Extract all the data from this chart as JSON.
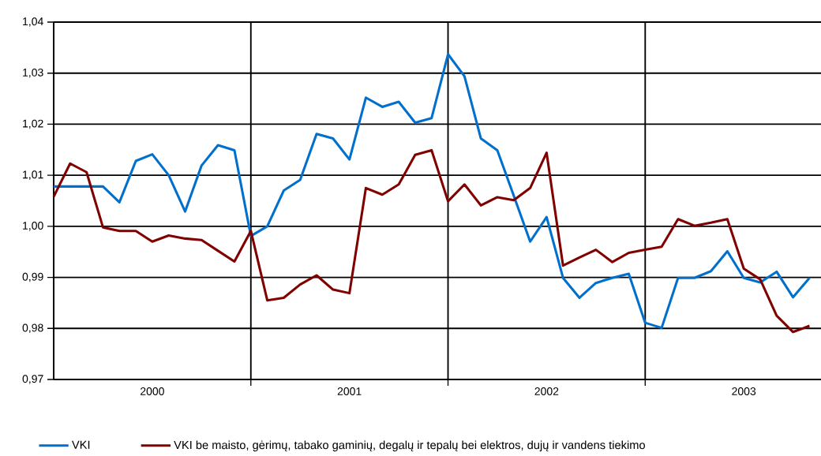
{
  "chart_data": {
    "type": "line",
    "x": [
      "2000-01",
      "2000-02",
      "2000-03",
      "2000-04",
      "2000-05",
      "2000-06",
      "2000-07",
      "2000-08",
      "2000-09",
      "2000-10",
      "2000-11",
      "2000-12",
      "2001-01",
      "2001-02",
      "2001-03",
      "2001-04",
      "2001-05",
      "2001-06",
      "2001-07",
      "2001-08",
      "2001-09",
      "2001-10",
      "2001-11",
      "2001-12",
      "2002-01",
      "2002-02",
      "2002-03",
      "2002-04",
      "2002-05",
      "2002-06",
      "2002-07",
      "2002-08",
      "2002-09",
      "2002-10",
      "2002-11",
      "2002-12",
      "2003-01",
      "2003-02",
      "2003-03",
      "2003-04",
      "2003-05",
      "2003-06",
      "2003-07",
      "2003-08",
      "2003-09",
      "2003-10",
      "2003-11"
    ],
    "series": [
      {
        "name": "VKI",
        "color": "#0070cc",
        "values": [
          1.0078,
          1.0078,
          1.0078,
          1.0078,
          1.0047,
          1.0128,
          1.0141,
          1.01,
          1.0029,
          1.0119,
          1.0159,
          1.0149,
          0.9981,
          1.0,
          1.007,
          1.0091,
          1.0181,
          1.0172,
          1.0131,
          1.0252,
          1.0234,
          1.0244,
          1.0203,
          1.0212,
          1.0337,
          1.0294,
          1.0172,
          1.0149,
          1.006,
          0.997,
          1.0018,
          0.9899,
          0.986,
          0.9889,
          0.9899,
          0.9907,
          0.9811,
          0.9801,
          0.9899,
          0.9899,
          0.9912,
          0.9951,
          0.9899,
          0.989,
          0.9911,
          0.9861,
          0.9899
        ]
      },
      {
        "name": "VKI be maisto, gėrimų, tabako gaminių, degalų ir tepalų bei elektros, dujų ir vandens tiekimo",
        "color": "#800000",
        "values": [
          1.0058,
          1.0123,
          1.0106,
          0.9998,
          0.9991,
          0.9991,
          0.997,
          0.9982,
          0.9976,
          0.9973,
          0.9952,
          0.9931,
          0.9991,
          0.9855,
          0.986,
          0.9886,
          0.9904,
          0.9876,
          0.9869,
          1.0075,
          1.0062,
          1.0082,
          1.014,
          1.0149,
          1.0049,
          1.0082,
          1.0041,
          1.0057,
          1.0051,
          1.0075,
          1.0144,
          0.9923,
          0.9939,
          0.9954,
          0.993,
          0.9948,
          0.9954,
          0.996,
          1.0014,
          1.0001,
          1.0007,
          1.0014,
          0.9917,
          0.9896,
          0.9825,
          0.9793,
          0.9805
        ]
      }
    ],
    "xlim": [
      "2000-01",
      "2003-11-22"
    ],
    "ylim": [
      0.97,
      1.04
    ],
    "xticks": [
      {
        "value": "2000-07",
        "label": "2000"
      },
      {
        "value": "2001-01",
        "label": null
      },
      {
        "value": "2001-07",
        "label": "2001"
      },
      {
        "value": "2002-01",
        "label": null
      },
      {
        "value": "2002-07",
        "label": "2002"
      },
      {
        "value": "2003-01",
        "label": null
      },
      {
        "value": "2003-07",
        "label": "2003"
      }
    ],
    "yticks": [
      {
        "value": 0.97,
        "label": "0,97"
      },
      {
        "value": 0.98,
        "label": "0,98"
      },
      {
        "value": 0.99,
        "label": "0,99"
      },
      {
        "value": 1.0,
        "label": "1,00"
      },
      {
        "value": 1.01,
        "label": "1,01"
      },
      {
        "value": 1.02,
        "label": "1,02"
      },
      {
        "value": 1.03,
        "label": "1,03"
      },
      {
        "value": 1.04,
        "label": "1,04"
      }
    ],
    "grid": true,
    "legend": "bottom"
  }
}
